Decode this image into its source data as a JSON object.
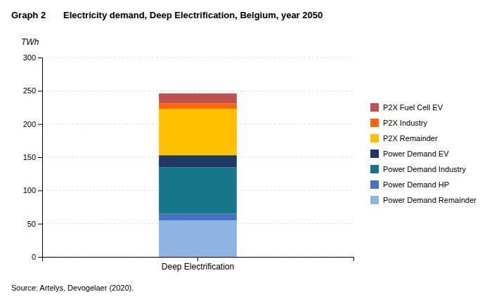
{
  "chart_data": {
    "type": "bar",
    "stacked": true,
    "title": "Electricity demand, Deep Electrification, Belgium, year 2050",
    "ylabel": "TWh",
    "annotations": [
      "Graph 2",
      "Source:    Artelys, Devogelaer (2020)."
    ],
    "categories": [
      "Deep Electrification"
    ],
    "series": [
      {
        "name": "Power Demand Remainder",
        "color": "#8DB4E2",
        "values": [
          55
        ]
      },
      {
        "name": "Power Demand HP",
        "color": "#4472C4",
        "values": [
          10
        ]
      },
      {
        "name": "Power Demand Industry",
        "color": "#17768A",
        "values": [
          70
        ]
      },
      {
        "name": "Power Demand EV",
        "color": "#1F3864",
        "values": [
          18
        ]
      },
      {
        "name": "P2X Remainder",
        "color": "#FFC000",
        "values": [
          70
        ]
      },
      {
        "name": "P2X Industry",
        "color": "#FF6600",
        "values": [
          8
        ]
      },
      {
        "name": "P2X Fuel Cell EV",
        "color": "#C0504D",
        "values": [
          15
        ]
      }
    ],
    "ylim": [
      0,
      300
    ],
    "yticks": [
      0,
      50,
      100,
      150,
      200,
      250,
      300
    ],
    "grid": true,
    "legend": "right"
  }
}
